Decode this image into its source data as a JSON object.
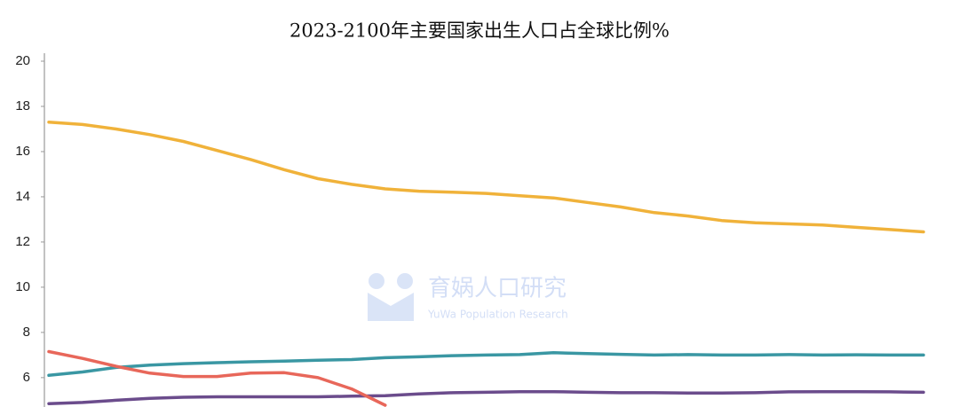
{
  "chart_data": {
    "type": "line",
    "title": "2023-2100年主要国家出生人口占全球比例%",
    "watermark": {
      "title": "育娲人口研究",
      "subtitle": "YuWa Population Research"
    },
    "ylim": [
      4.7,
      20
    ],
    "yticks": [
      6,
      8,
      10,
      12,
      14,
      16,
      18,
      20
    ],
    "grid": false,
    "series": [
      {
        "color": "#f0b23a",
        "values": [
          17.3,
          17.2,
          17.0,
          16.75,
          16.45,
          16.05,
          15.65,
          15.2,
          14.8,
          14.55,
          14.35,
          14.25,
          14.2,
          14.15,
          14.05,
          13.95,
          13.75,
          13.55,
          13.3,
          13.15,
          12.95,
          12.85,
          12.8,
          12.75,
          12.65,
          12.55,
          12.45
        ]
      },
      {
        "color": "#3a97a3",
        "values": [
          6.1,
          6.25,
          6.45,
          6.55,
          6.62,
          6.66,
          6.7,
          6.73,
          6.77,
          6.8,
          6.88,
          6.92,
          6.97,
          7.0,
          7.02,
          7.1,
          7.06,
          7.03,
          7.0,
          7.02,
          7.0,
          7.0,
          7.02,
          7.0,
          7.01,
          7.0,
          7.0
        ]
      },
      {
        "color": "#6b4c8c",
        "values": [
          4.85,
          4.9,
          5.0,
          5.08,
          5.13,
          5.15,
          5.15,
          5.15,
          5.15,
          5.18,
          5.2,
          5.28,
          5.33,
          5.35,
          5.38,
          5.38,
          5.35,
          5.33,
          5.33,
          5.32,
          5.32,
          5.33,
          5.37,
          5.38,
          5.38,
          5.37,
          5.35
        ]
      },
      {
        "color": "#e8675a",
        "values": [
          7.15,
          6.85,
          6.5,
          6.2,
          6.05,
          6.05,
          6.2,
          6.22,
          6.0,
          5.5,
          4.78,
          null,
          null,
          null,
          null,
          null,
          null,
          null,
          null,
          null,
          null,
          null,
          null,
          null,
          null,
          null,
          null
        ]
      }
    ]
  }
}
